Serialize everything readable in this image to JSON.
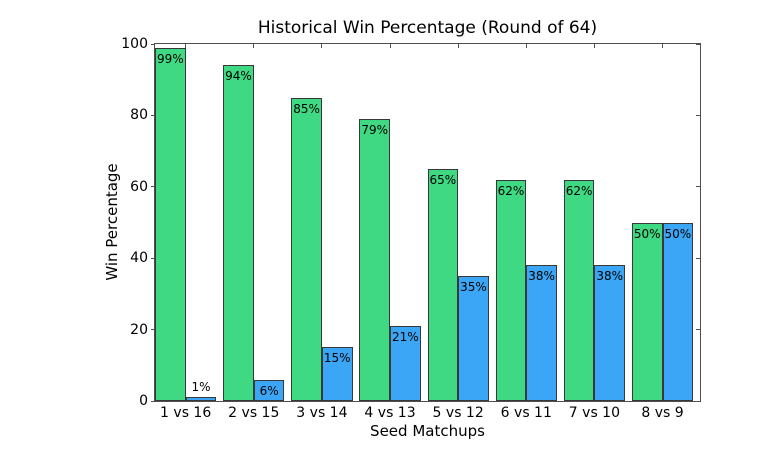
{
  "chart_data": {
    "type": "bar",
    "title": "Historical Win Percentage (Round of 64)",
    "xlabel": "Seed Matchups",
    "ylabel": "Win Percentage",
    "categories": [
      "1 vs 16",
      "2 vs 15",
      "3 vs 14",
      "4 vs 13",
      "5 vs 12",
      "6 vs 11",
      "7 vs 10",
      "8 vs 9"
    ],
    "series": [
      {
        "name": "higher-seed-win-pct",
        "color": "#3ed982",
        "values": [
          99,
          94,
          85,
          79,
          65,
          62,
          62,
          50
        ]
      },
      {
        "name": "lower-seed-win-pct",
        "color": "#3aa6f5",
        "values": [
          1,
          6,
          15,
          21,
          35,
          38,
          38,
          50
        ]
      }
    ],
    "label_suffix": "%",
    "yticks": [
      0,
      20,
      40,
      60,
      80,
      100
    ],
    "ylim": [
      0,
      100
    ],
    "grid": false,
    "legend": null,
    "bar_edge_color": "#383838",
    "axis_color": "#4f4f4f"
  }
}
